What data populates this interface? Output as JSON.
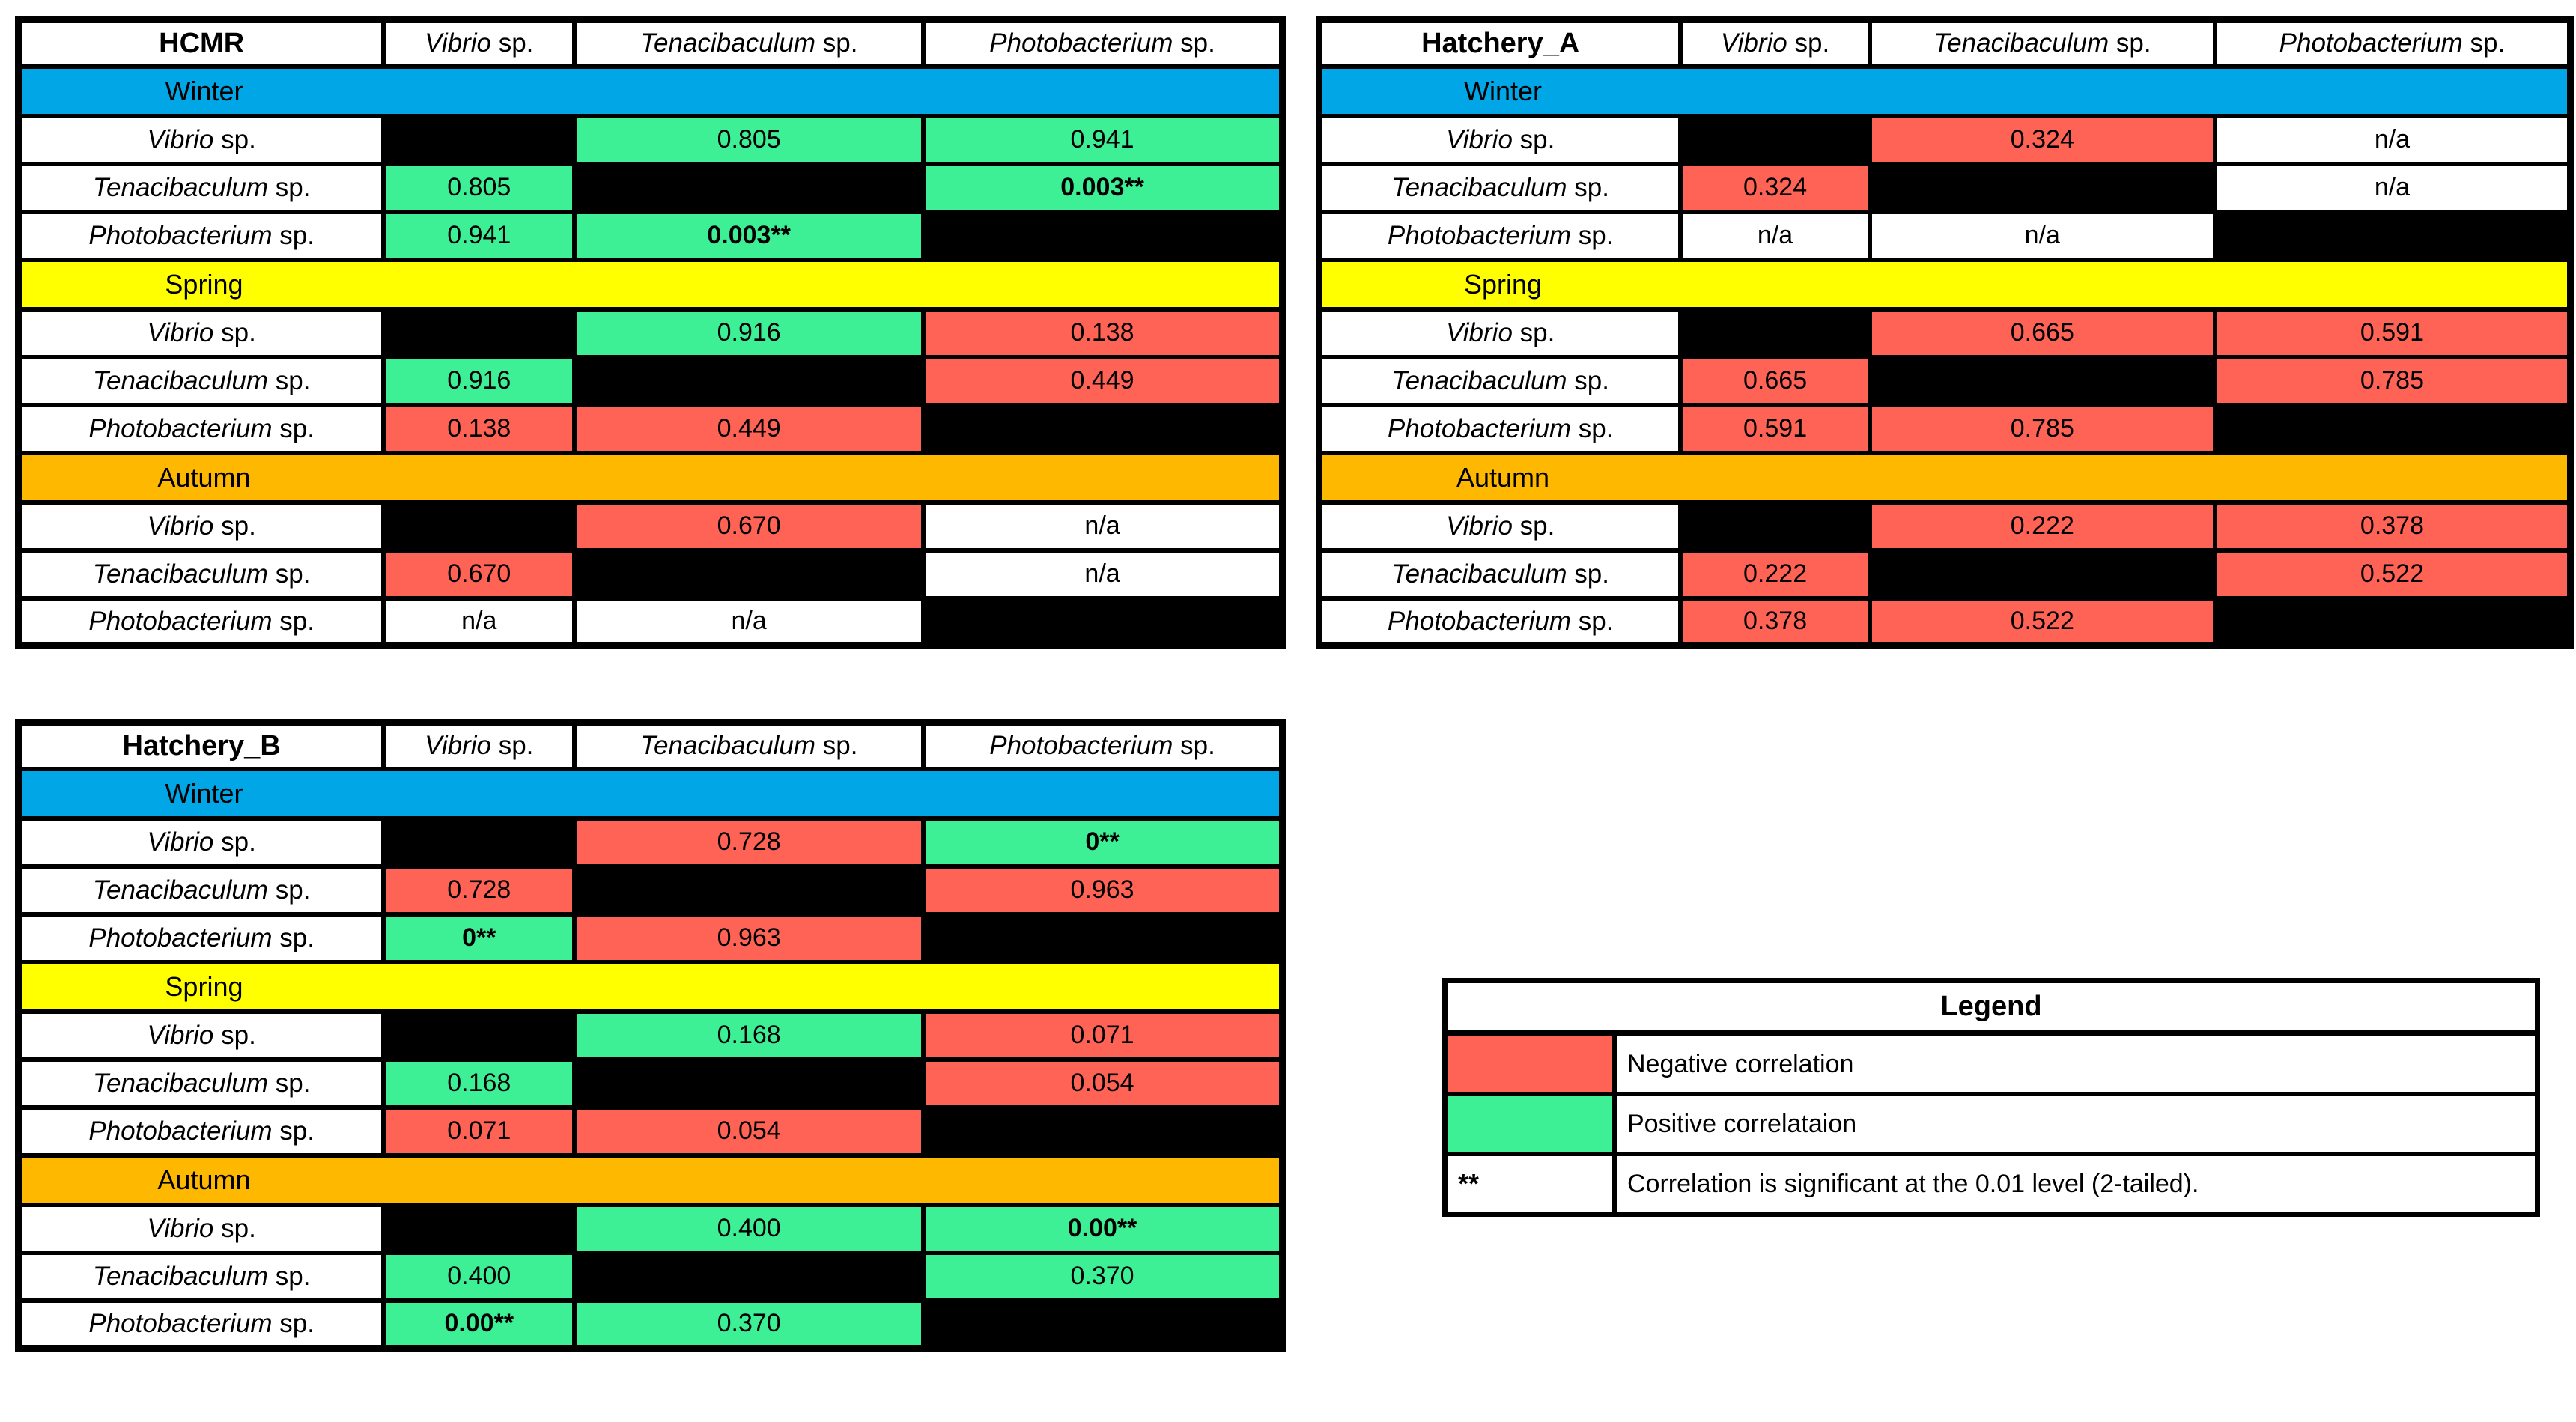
{
  "palette": {
    "winter": "#00A6E6",
    "spring": "#FFFF00",
    "autumn": "#FFB800",
    "positive": "#3DF096",
    "negative": "#FF6355",
    "na": "#FFFFFF",
    "diagonal": "#000000",
    "border": "#000000",
    "background": "#FFFFFF"
  },
  "species": [
    {
      "genus": "Vibrio",
      "suffix": " sp."
    },
    {
      "genus": "Tenacibaculum",
      "suffix": " sp."
    },
    {
      "genus": "Photobacterium",
      "suffix": " sp."
    }
  ],
  "chart_data": {
    "type": "table",
    "description": "Seasonal pairwise correlation p-value matrices for three bacteria genera at three sites, colored by correlation sign",
    "tables": [
      {
        "site": "HCMR",
        "seasons": [
          {
            "name": "Winter",
            "color": "winter",
            "matrix": [
              [
                null,
                {
                  "v": "0.805",
                  "c": "positive"
                },
                {
                  "v": "0.941",
                  "c": "positive"
                }
              ],
              [
                {
                  "v": "0.805",
                  "c": "positive"
                },
                null,
                {
                  "v": "0.003**",
                  "c": "positive",
                  "sig": true
                }
              ],
              [
                {
                  "v": "0.941",
                  "c": "positive"
                },
                {
                  "v": "0.003**",
                  "c": "positive",
                  "sig": true
                },
                null
              ]
            ]
          },
          {
            "name": "Spring",
            "color": "spring",
            "matrix": [
              [
                null,
                {
                  "v": "0.916",
                  "c": "positive"
                },
                {
                  "v": "0.138",
                  "c": "negative"
                }
              ],
              [
                {
                  "v": "0.916",
                  "c": "positive"
                },
                null,
                {
                  "v": "0.449",
                  "c": "negative"
                }
              ],
              [
                {
                  "v": "0.138",
                  "c": "negative"
                },
                {
                  "v": "0.449",
                  "c": "negative"
                },
                null
              ]
            ]
          },
          {
            "name": "Autumn",
            "color": "autumn",
            "matrix": [
              [
                null,
                {
                  "v": "0.670",
                  "c": "negative"
                },
                {
                  "v": "n/a",
                  "c": "na"
                }
              ],
              [
                {
                  "v": "0.670",
                  "c": "negative"
                },
                null,
                {
                  "v": "n/a",
                  "c": "na"
                }
              ],
              [
                {
                  "v": "n/a",
                  "c": "na"
                },
                {
                  "v": "n/a",
                  "c": "na"
                },
                null
              ]
            ]
          }
        ]
      },
      {
        "site": "Hatchery_A",
        "seasons": [
          {
            "name": "Winter",
            "color": "winter",
            "matrix": [
              [
                null,
                {
                  "v": "0.324",
                  "c": "negative"
                },
                {
                  "v": "n/a",
                  "c": "na"
                }
              ],
              [
                {
                  "v": "0.324",
                  "c": "negative"
                },
                null,
                {
                  "v": "n/a",
                  "c": "na"
                }
              ],
              [
                {
                  "v": "n/a",
                  "c": "na"
                },
                {
                  "v": "n/a",
                  "c": "na"
                },
                null
              ]
            ]
          },
          {
            "name": "Spring",
            "color": "spring",
            "matrix": [
              [
                null,
                {
                  "v": "0.665",
                  "c": "negative"
                },
                {
                  "v": "0.591",
                  "c": "negative"
                }
              ],
              [
                {
                  "v": "0.665",
                  "c": "negative"
                },
                null,
                {
                  "v": "0.785",
                  "c": "negative"
                }
              ],
              [
                {
                  "v": "0.591",
                  "c": "negative"
                },
                {
                  "v": "0.785",
                  "c": "negative"
                },
                null
              ]
            ]
          },
          {
            "name": "Autumn",
            "color": "autumn",
            "matrix": [
              [
                null,
                {
                  "v": "0.222",
                  "c": "negative"
                },
                {
                  "v": "0.378",
                  "c": "negative"
                }
              ],
              [
                {
                  "v": "0.222",
                  "c": "negative"
                },
                null,
                {
                  "v": "0.522",
                  "c": "negative"
                }
              ],
              [
                {
                  "v": "0.378",
                  "c": "negative"
                },
                {
                  "v": "0.522",
                  "c": "negative"
                },
                null
              ]
            ]
          }
        ]
      },
      {
        "site": "Hatchery_B",
        "seasons": [
          {
            "name": "Winter",
            "color": "winter",
            "matrix": [
              [
                null,
                {
                  "v": "0.728",
                  "c": "negative"
                },
                {
                  "v": "0**",
                  "c": "positive",
                  "sig": true
                }
              ],
              [
                {
                  "v": "0.728",
                  "c": "negative"
                },
                null,
                {
                  "v": "0.963",
                  "c": "negative"
                }
              ],
              [
                {
                  "v": "0**",
                  "c": "positive",
                  "sig": true
                },
                {
                  "v": "0.963",
                  "c": "negative"
                },
                null
              ]
            ]
          },
          {
            "name": "Spring",
            "color": "spring",
            "matrix": [
              [
                null,
                {
                  "v": "0.168",
                  "c": "positive"
                },
                {
                  "v": "0.071",
                  "c": "negative"
                }
              ],
              [
                {
                  "v": "0.168",
                  "c": "positive"
                },
                null,
                {
                  "v": "0.054",
                  "c": "negative"
                }
              ],
              [
                {
                  "v": "0.071",
                  "c": "negative"
                },
                {
                  "v": "0.054",
                  "c": "negative"
                },
                null
              ]
            ]
          },
          {
            "name": "Autumn",
            "color": "autumn",
            "matrix": [
              [
                null,
                {
                  "v": "0.400",
                  "c": "positive"
                },
                {
                  "v": "0.00**",
                  "c": "positive",
                  "sig": true
                }
              ],
              [
                {
                  "v": "0.400",
                  "c": "positive"
                },
                null,
                {
                  "v": "0.370",
                  "c": "positive"
                }
              ],
              [
                {
                  "v": "0.00**",
                  "c": "positive",
                  "sig": true
                },
                {
                  "v": "0.370",
                  "c": "positive"
                },
                null
              ]
            ]
          }
        ]
      }
    ],
    "legend": {
      "title": "Legend",
      "entries": [
        {
          "swatch": "negative",
          "symbol": "",
          "label": "Negative correlation"
        },
        {
          "swatch": "positive",
          "symbol": "",
          "label": "Positive correlataion"
        },
        {
          "swatch": "na",
          "symbol": "**",
          "label": "Correlation is significant at the 0.01 level (2-tailed)."
        }
      ]
    }
  }
}
